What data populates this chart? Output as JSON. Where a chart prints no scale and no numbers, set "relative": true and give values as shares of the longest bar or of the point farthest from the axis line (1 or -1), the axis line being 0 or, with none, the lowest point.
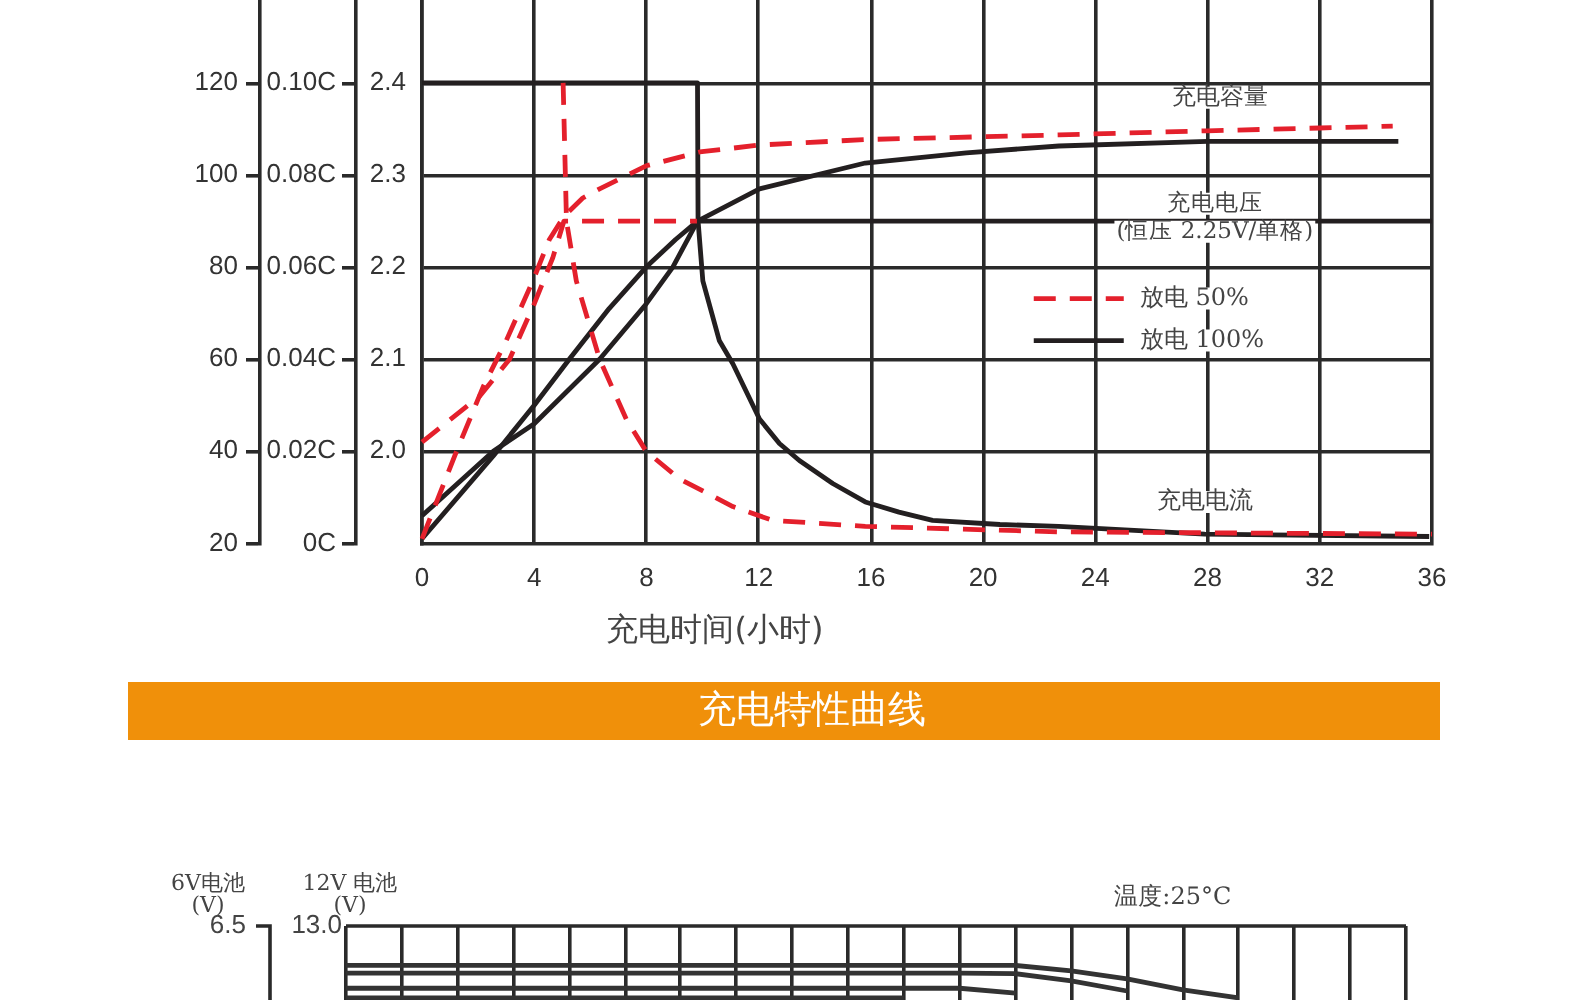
{
  "chart_data": [
    {
      "type": "line",
      "title": "充电特性曲线",
      "xlabel": "充电时间(小时)",
      "xlim": [
        0,
        36
      ],
      "xticks": [
        0,
        4,
        8,
        12,
        16,
        20,
        24,
        28,
        32,
        36
      ],
      "ylim": [
        1.9,
        2.49
      ],
      "yticks": [
        {
          "value": 2,
          "label": "2.0"
        },
        2.1,
        2.2,
        2.3,
        2.4
      ],
      "y2lim": [
        0,
        0.118
      ],
      "y2ticks": [
        {
          "value": 0,
          "label": "0C"
        },
        {
          "value": 0.02,
          "label": "0.02C"
        },
        {
          "value": 0.04,
          "label": "0.04C"
        },
        {
          "value": 0.06,
          "label": "0.06C"
        },
        {
          "value": 0.08,
          "label": "0.08C"
        },
        {
          "value": 0.1,
          "label": "0.10C"
        }
      ],
      "y3lim": [
        20,
        138
      ],
      "y3ticks": [
        20,
        40,
        60,
        80,
        100,
        120
      ],
      "grid": true,
      "legend": "right",
      "series": [
        {
          "name": "放电 50%",
          "color": "#e4202c",
          "line_style": "dashed",
          "axis": "y",
          "x": [
            0,
            2.06,
            3.12,
            4.0,
            4.66,
            5.06,
            9.8
          ],
          "values": [
            2.01,
            2.06,
            2.1,
            2.16,
            2.21,
            2.25,
            2.25
          ]
        },
        {
          "color": "#e4202c",
          "line_style": "dashed",
          "axis": "y2",
          "x": [
            5.03,
            5.15,
            5.5,
            6.33,
            7.28,
            7.99,
            9.18,
            11.08,
            12.5,
            15.8,
            22.7,
            36
          ],
          "values": [
            0.1,
            0.07,
            0.057,
            0.04,
            0.027,
            0.02,
            0.014,
            0.008,
            0.005,
            0.0037,
            0.0025,
            0.002
          ]
        },
        {
          "color": "#e4202c",
          "line_style": "dashed",
          "axis": "y3",
          "x": [
            0,
            1.23,
            2.18,
            3.0,
            3.95,
            4.54,
            5.06,
            5.73,
            6.33,
            7.99,
            9.9,
            12.03,
            15.8,
            22.7,
            28,
            32,
            34.6
          ],
          "values": [
            21,
            40,
            54,
            64,
            77,
            86,
            91,
            95,
            97,
            102,
            105,
            106.5,
            107.7,
            108.7,
            109.6,
            110.2,
            110.6
          ]
        },
        {
          "name": "放电 100%",
          "color": "#231f20",
          "line_style": "solid",
          "axis": "y",
          "x": [
            0,
            2.54,
            4.0,
            6.33,
            7.99,
            8.94,
            9.82,
            36
          ],
          "values": [
            1.93,
            2.0,
            2.03,
            2.1,
            2.16,
            2.2,
            2.25,
            2.25
          ]
        },
        {
          "color": "#231f20",
          "line_style": "solid",
          "axis": "y2",
          "x": [
            0,
            9.82,
            9.84,
            10.01,
            10.6,
            11.08,
            12.03,
            12.74,
            13.45,
            14.64,
            15.8,
            17.0,
            18.2,
            20.6,
            22.7,
            27.9,
            35.9
          ],
          "values": [
            0.1,
            0.1,
            0.07,
            0.057,
            0.044,
            0.039,
            0.027,
            0.0217,
            0.018,
            0.013,
            0.009,
            0.0068,
            0.005,
            0.0041,
            0.0037,
            0.002,
            0.0015
          ]
        },
        {
          "color": "#231f20",
          "line_style": "solid",
          "axis": "y3",
          "x": [
            0,
            2.54,
            4.0,
            5.25,
            6.67,
            7.99,
            9.04,
            9.82,
            12.03,
            15.8,
            19.4,
            22.7,
            28,
            34.8
          ],
          "values": [
            21,
            39,
            50,
            60,
            71,
            80,
            86,
            90,
            97,
            102.6,
            104.8,
            106.3,
            107.3,
            107.3
          ]
        }
      ],
      "annotations": [
        "充电容量",
        "充电电压\n(恒压 2.25V/单格)",
        "充电电流"
      ]
    },
    {
      "type": "line",
      "relative": true,
      "ylabel": "12V 电池\n(V)",
      "y2label": "6V电池\n(V)",
      "grid": "x",
      "categories": [
        null,
        null,
        null,
        null,
        null,
        null,
        null,
        null,
        null,
        null,
        null,
        null,
        null,
        null,
        null,
        null,
        null,
        null,
        null,
        null
      ],
      "annotations": [
        "温度:25°C",
        "13.0",
        "6.5"
      ],
      "series": [
        {
          "color": "#333333",
          "values": [
            1,
            1,
            1,
            1,
            1,
            1,
            1,
            1,
            1,
            1,
            1,
            1,
            1,
            0.84,
            0.61,
            0.29,
            0.06,
            null,
            null,
            null
          ]
        },
        {
          "color": "#333333",
          "values": [
            0.78,
            0.78,
            0.78,
            0.78,
            0.78,
            0.78,
            0.78,
            0.78,
            0.78,
            0.78,
            0.78,
            0.78,
            0.76,
            0.55,
            0.26,
            null,
            null,
            null,
            null,
            null
          ]
        },
        {
          "color": "#333333",
          "values": [
            0.34,
            0.34,
            0.34,
            0.34,
            0.34,
            0.34,
            0.34,
            0.34,
            0.34,
            0.34,
            0.34,
            0.34,
            0.2,
            null,
            null,
            null,
            null,
            null,
            null,
            null
          ]
        },
        {
          "color": "#333333",
          "values": [
            0.06,
            0.06,
            0.06,
            0.06,
            0.06,
            0.06,
            0.06,
            0.06,
            0.06,
            0.06,
            0.06,
            null,
            null,
            null,
            null,
            null,
            null,
            null,
            null,
            null
          ]
        }
      ]
    }
  ]
}
